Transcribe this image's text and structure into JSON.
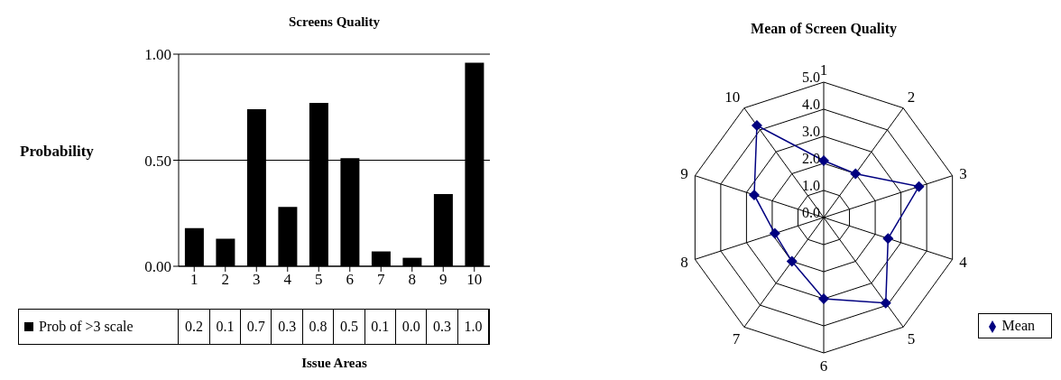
{
  "chart_data": [
    {
      "type": "bar",
      "title": "Screens Quality",
      "xlabel": "Issue Areas",
      "ylabel": "Probability",
      "categories": [
        "1",
        "2",
        "3",
        "4",
        "5",
        "6",
        "7",
        "8",
        "9",
        "10"
      ],
      "series": [
        {
          "name": "Prob of >3 scale",
          "color": "#000000",
          "values": [
            0.18,
            0.13,
            0.74,
            0.28,
            0.77,
            0.51,
            0.07,
            0.04,
            0.34,
            0.96
          ],
          "value_labels": [
            "0.2",
            "0.1",
            "0.7",
            "0.3",
            "0.8",
            "0.5",
            "0.1",
            "0.0",
            "0.3",
            "1.0"
          ]
        }
      ],
      "ylim": [
        0,
        1
      ],
      "yticks": [
        {
          "value": 0,
          "label": "0.00"
        },
        {
          "value": 0.5,
          "label": "0.50"
        },
        {
          "value": 1,
          "label": "1.00"
        }
      ],
      "grid": "y",
      "legend": "bottom left"
    },
    {
      "type": "radar",
      "title": "Mean of Screen Quality",
      "categories": [
        "1",
        "2",
        "3",
        "4",
        "5",
        "6",
        "7",
        "8",
        "9",
        "10"
      ],
      "series": [
        {
          "name": "Mean",
          "color": "#000080",
          "values": [
            2.1,
            2.0,
            3.7,
            2.5,
            3.9,
            3.0,
            2.0,
            1.9,
            2.7,
            4.2
          ]
        }
      ],
      "ylim": [
        0,
        5
      ],
      "yticks": [
        {
          "value": 0,
          "label": "0.0"
        },
        {
          "value": 1,
          "label": "1.0"
        },
        {
          "value": 2,
          "label": "2.0"
        },
        {
          "value": 3,
          "label": "3.0"
        },
        {
          "value": 4,
          "label": "4.0"
        },
        {
          "value": 5,
          "label": "5.0"
        }
      ],
      "marker": "diamond",
      "legend": "bottom right"
    }
  ]
}
